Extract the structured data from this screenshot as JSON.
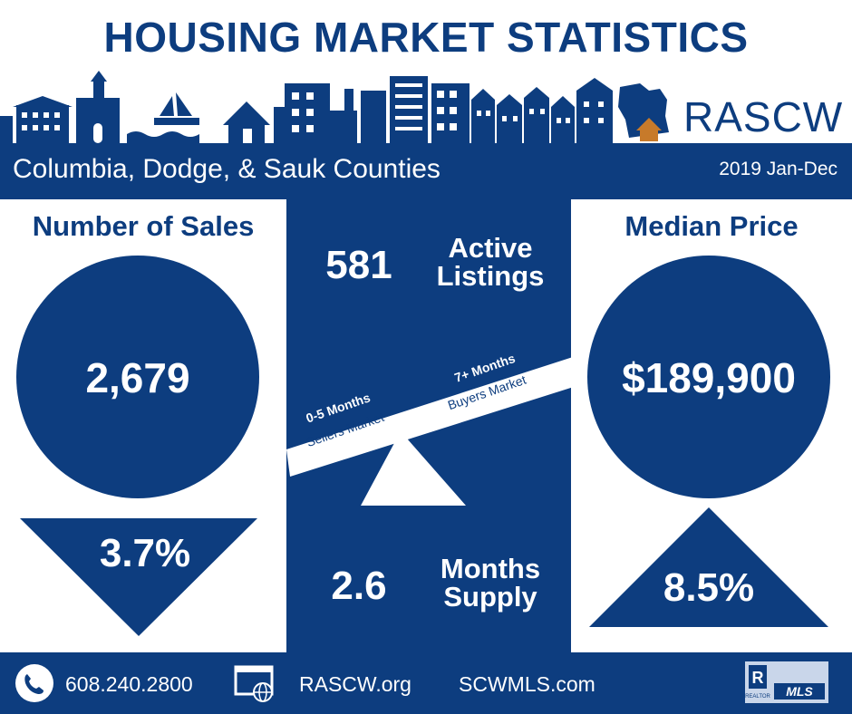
{
  "header": {
    "title": "HOUSING MARKET STATISTICS",
    "brand": "RASCW"
  },
  "band": {
    "region": "Columbia, Dodge, & Sauk Counties",
    "period": "2019 Jan-Dec"
  },
  "sales": {
    "heading": "Number of Sales",
    "value": "2,679",
    "change": "3.7%",
    "direction": "down"
  },
  "price": {
    "heading": "Median Price",
    "value": "$189,900",
    "change": "8.5%",
    "direction": "up"
  },
  "center": {
    "active_value": "581",
    "active_label": "Active Listings",
    "supply_value": "2.6",
    "supply_label": "Months Supply",
    "seller_range": "0-5 Months",
    "seller_label": "Sellers Market",
    "buyer_range": "7+ Months",
    "buyer_label": "Buyers Market"
  },
  "footer": {
    "phone": "608.240.2800",
    "site1": "RASCW.org",
    "site2": "SCWMLS.com",
    "mls_logo_text": "MLS",
    "realtor_text": "REALTOR"
  },
  "colors": {
    "navy": "#0d3d7f",
    "house_orange": "#c77a2a",
    "white": "#ffffff"
  },
  "icons": {
    "phone": "phone-icon",
    "web": "web-globe-icon",
    "skyline": "city-skyline-icon",
    "wisconsin": "wisconsin-house-icon"
  }
}
